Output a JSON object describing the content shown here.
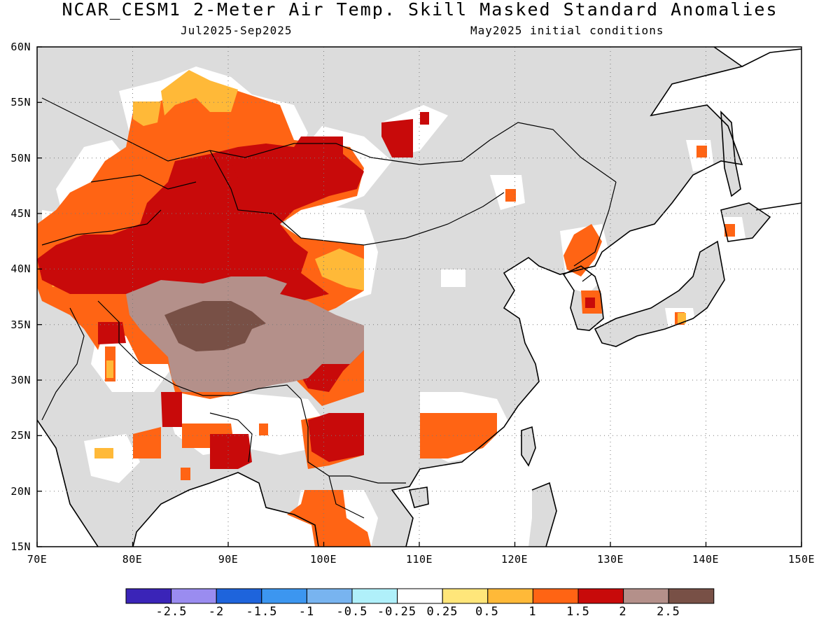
{
  "title": "NCAR_CESM1 2-Meter Air Temp. Skill Masked Standard Anomalies",
  "subtitle_left": "Jul2025-Sep2025",
  "subtitle_right": "May2025 initial conditions",
  "map": {
    "lon_range": [
      70,
      150
    ],
    "lat_range": [
      15,
      60
    ],
    "lat_labels": [
      "60N",
      "55N",
      "50N",
      "45N",
      "40N",
      "35N",
      "30N",
      "25N",
      "20N",
      "15N"
    ],
    "lon_labels": [
      "70E",
      "80E",
      "90E",
      "100E",
      "110E",
      "120E",
      "130E",
      "140E",
      "150E"
    ],
    "grid": "dotted",
    "land_color": "#dcdcdc",
    "ocean_color": "#ffffff"
  },
  "colorbar": {
    "colors": [
      "#3a24b8",
      "#9a8cf0",
      "#1e64dc",
      "#3c96f0",
      "#78b4f0",
      "#b0f0fa",
      "#ffffff",
      "#ffe67a",
      "#ffb938",
      "#ff6414",
      "#c80a0a",
      "#b4908a",
      "#785046"
    ],
    "labels": [
      "-2.5",
      "-2",
      "-1.5",
      "-1",
      "-0.5",
      "-0.25",
      "0.25",
      "0.5",
      "1",
      "1.5",
      "2",
      "2.5"
    ]
  }
}
